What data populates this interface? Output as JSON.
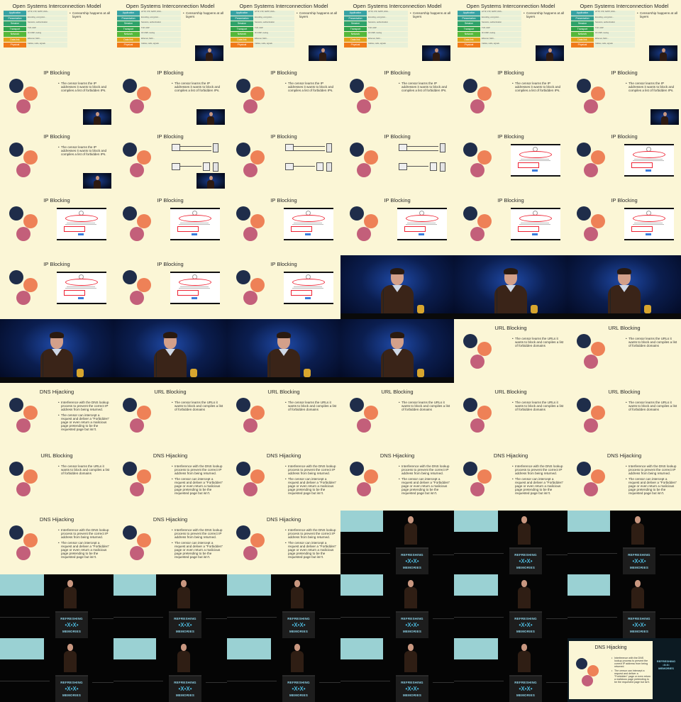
{
  "osi": {
    "title": "Open Systems Interconnection Model",
    "layers": [
      {
        "label": "Application",
        "color": "#38a3a5",
        "desc": "HTTP, FTP, SMTP, DNS..."
      },
      {
        "label": "Presentation",
        "color": "#2f9e8f",
        "desc": "Encoding, encryption..."
      },
      {
        "label": "Session",
        "color": "#2fa36b",
        "desc": "Sessions, authentication"
      },
      {
        "label": "Transport",
        "color": "#2fa34a",
        "desc": "TCP, UDP"
      },
      {
        "label": "Network",
        "color": "#55b83a",
        "desc": "IP, ICMP, routing"
      },
      {
        "label": "Data link",
        "color": "#e0a21a",
        "desc": "Ethernet, MAC..."
      },
      {
        "label": "Physical",
        "color": "#f07a1a",
        "desc": "Cables, radio, signals"
      }
    ],
    "note": "Censorship happens at all layers"
  },
  "ip_blocking": {
    "title": "IP Blocking",
    "bullets": [
      "The censor learns the IP addresses it wants to block and compiles a list of forbidden IPs."
    ]
  },
  "url_blocking": {
    "title": "URL Blocking",
    "bullets": [
      "The censor learns the URLs it wants to block and compiles a list of forbidden domains"
    ]
  },
  "dns_hijacking": {
    "title": "DNS Hijacking",
    "bullets": [
      "Interference with the DNS lookup process to prevent the correct IP address from being returned.",
      "The censor can intercept a request and deliver a \"Forbidden\" page or even return a malicious page pretending to be the requested page but isn't."
    ]
  },
  "lectern": {
    "line1": "REFRESHING",
    "line2": "•X•X•",
    "line3": "MEMORIES"
  }
}
